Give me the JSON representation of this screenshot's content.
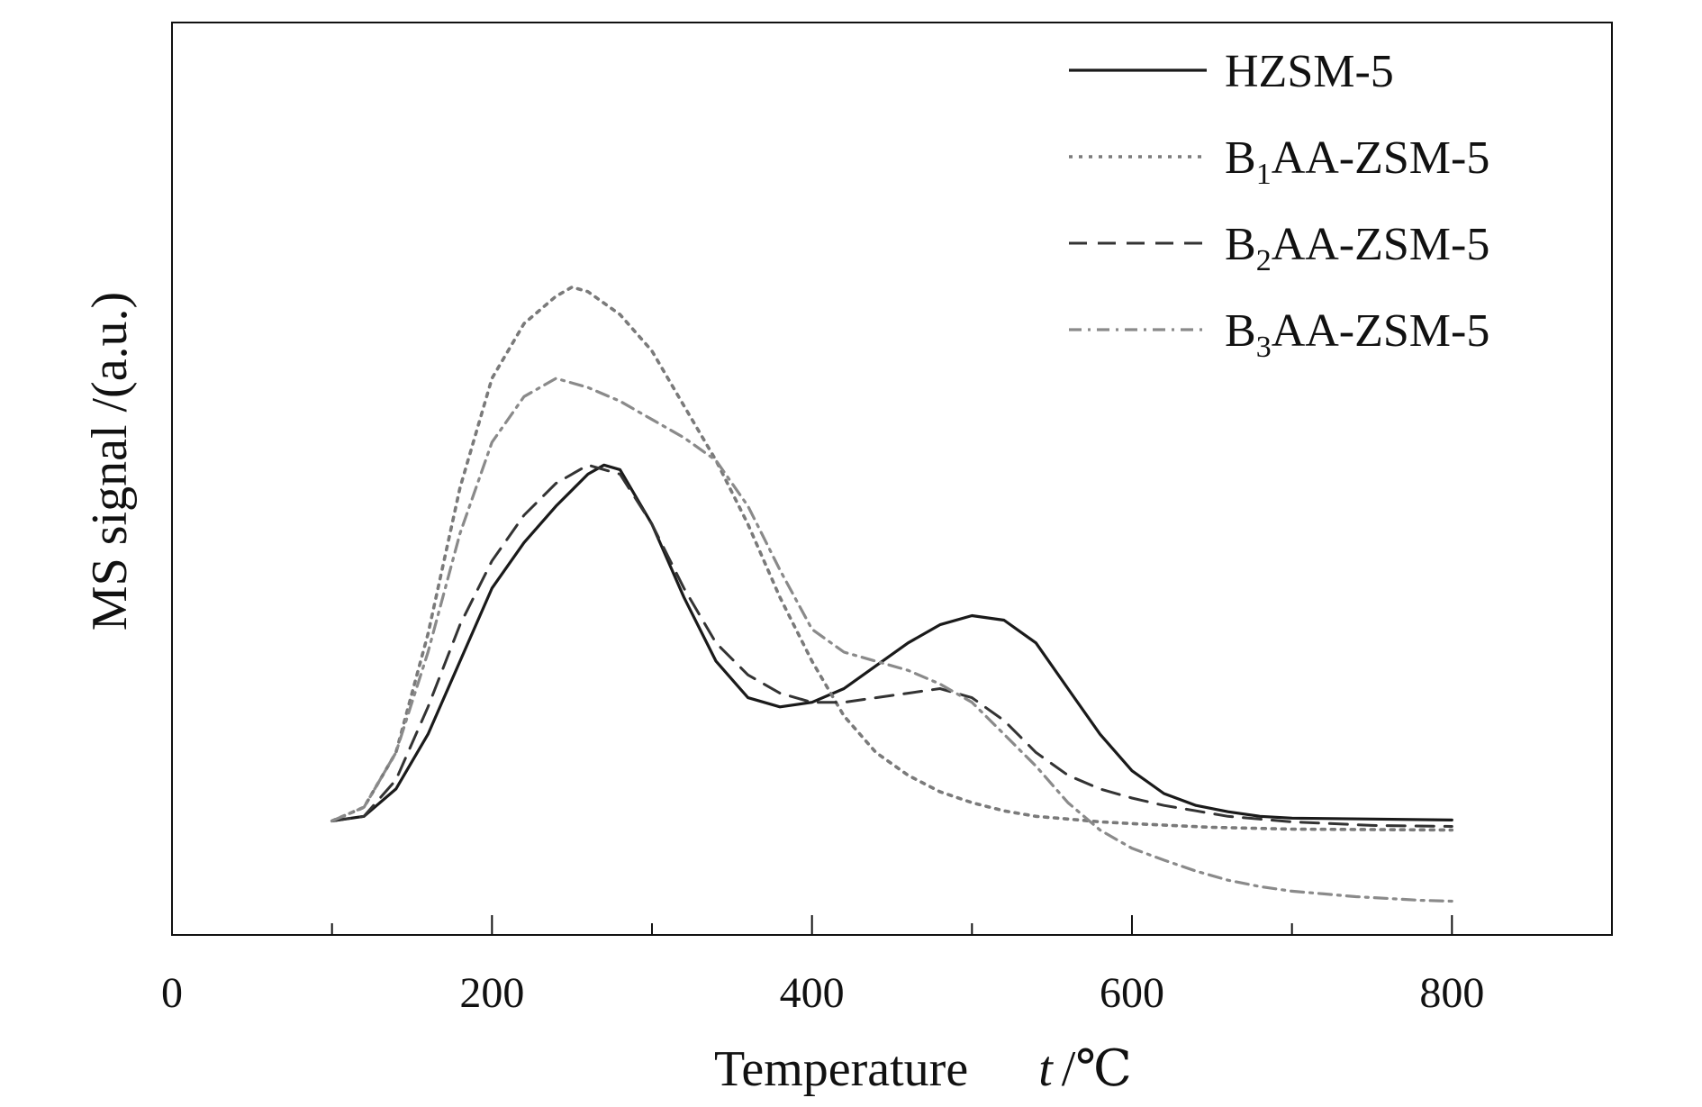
{
  "chart_data": {
    "type": "line",
    "title": "",
    "xlabel": "Temperature",
    "xlabel_symbol": "t",
    "xlabel_unit": "/℃",
    "ylabel": "MS signal  /(a.u.)",
    "xlim": [
      0,
      900
    ],
    "ylim": [
      0,
      100
    ],
    "x_ticks": [
      0,
      200,
      400,
      600,
      800
    ],
    "x_minor_ticks": [
      100,
      300,
      500,
      700
    ],
    "y_ticks_shown": false,
    "grid": false,
    "legend_position": "top-right",
    "series": [
      {
        "name_main": "HZSM-5",
        "name_sub": "",
        "name_suffix": "",
        "style": "solid",
        "color": "#1a1a1a",
        "points": [
          [
            100,
            12.5
          ],
          [
            120,
            13
          ],
          [
            140,
            16
          ],
          [
            160,
            22
          ],
          [
            180,
            30
          ],
          [
            200,
            38
          ],
          [
            220,
            43
          ],
          [
            240,
            47
          ],
          [
            260,
            50.5
          ],
          [
            270,
            51.5
          ],
          [
            280,
            51
          ],
          [
            300,
            45
          ],
          [
            320,
            37
          ],
          [
            340,
            30
          ],
          [
            360,
            26
          ],
          [
            380,
            25
          ],
          [
            400,
            25.5
          ],
          [
            420,
            27
          ],
          [
            440,
            29.5
          ],
          [
            460,
            32
          ],
          [
            480,
            34
          ],
          [
            500,
            35
          ],
          [
            520,
            34.5
          ],
          [
            540,
            32
          ],
          [
            560,
            27
          ],
          [
            580,
            22
          ],
          [
            600,
            18
          ],
          [
            620,
            15.5
          ],
          [
            640,
            14.2
          ],
          [
            660,
            13.5
          ],
          [
            680,
            13
          ],
          [
            700,
            12.8
          ],
          [
            750,
            12.7
          ],
          [
            800,
            12.6
          ]
        ]
      },
      {
        "name_main": "B",
        "name_sub": "1",
        "name_suffix": "AA-ZSM-5",
        "style": "dot",
        "color": "#7a7a7a",
        "points": [
          [
            100,
            12.5
          ],
          [
            120,
            14
          ],
          [
            140,
            20
          ],
          [
            160,
            33
          ],
          [
            180,
            49
          ],
          [
            200,
            61
          ],
          [
            220,
            67
          ],
          [
            240,
            70
          ],
          [
            250,
            71
          ],
          [
            260,
            70.5
          ],
          [
            280,
            68
          ],
          [
            300,
            64
          ],
          [
            320,
            58
          ],
          [
            340,
            52
          ],
          [
            360,
            45
          ],
          [
            380,
            37
          ],
          [
            400,
            30
          ],
          [
            420,
            24
          ],
          [
            440,
            20
          ],
          [
            460,
            17.5
          ],
          [
            480,
            15.7
          ],
          [
            500,
            14.5
          ],
          [
            520,
            13.6
          ],
          [
            540,
            13
          ],
          [
            560,
            12.7
          ],
          [
            580,
            12.4
          ],
          [
            600,
            12.2
          ],
          [
            650,
            11.8
          ],
          [
            700,
            11.6
          ],
          [
            800,
            11.5
          ]
        ]
      },
      {
        "name_main": "B",
        "name_sub": "2",
        "name_suffix": "AA-ZSM-5",
        "style": "dash",
        "color": "#333333",
        "points": [
          [
            100,
            12.5
          ],
          [
            120,
            13
          ],
          [
            140,
            17
          ],
          [
            160,
            25
          ],
          [
            180,
            34
          ],
          [
            200,
            41
          ],
          [
            220,
            46
          ],
          [
            240,
            49.5
          ],
          [
            260,
            51.5
          ],
          [
            280,
            50.5
          ],
          [
            300,
            45
          ],
          [
            320,
            38
          ],
          [
            340,
            32
          ],
          [
            360,
            28.5
          ],
          [
            380,
            26.5
          ],
          [
            400,
            25.5
          ],
          [
            420,
            25.5
          ],
          [
            440,
            26
          ],
          [
            460,
            26.5
          ],
          [
            480,
            27
          ],
          [
            500,
            26
          ],
          [
            520,
            23.5
          ],
          [
            540,
            20
          ],
          [
            560,
            17.5
          ],
          [
            580,
            16
          ],
          [
            600,
            15
          ],
          [
            620,
            14.2
          ],
          [
            640,
            13.6
          ],
          [
            660,
            13
          ],
          [
            700,
            12.4
          ],
          [
            750,
            12
          ],
          [
            800,
            11.9
          ]
        ]
      },
      {
        "name_main": "B",
        "name_sub": "3",
        "name_suffix": "AA-ZSM-5",
        "style": "dashdot",
        "color": "#8a8a8a",
        "points": [
          [
            100,
            12.5
          ],
          [
            120,
            14
          ],
          [
            140,
            20
          ],
          [
            160,
            31
          ],
          [
            180,
            44
          ],
          [
            200,
            54
          ],
          [
            220,
            59
          ],
          [
            240,
            61
          ],
          [
            260,
            60
          ],
          [
            280,
            58.5
          ],
          [
            300,
            56.5
          ],
          [
            320,
            54.5
          ],
          [
            340,
            52
          ],
          [
            360,
            47
          ],
          [
            380,
            40
          ],
          [
            400,
            33.5
          ],
          [
            420,
            31
          ],
          [
            440,
            30
          ],
          [
            460,
            29
          ],
          [
            480,
            27.5
          ],
          [
            500,
            25.5
          ],
          [
            520,
            22
          ],
          [
            540,
            18.5
          ],
          [
            560,
            14.5
          ],
          [
            580,
            11.5
          ],
          [
            600,
            9.5
          ],
          [
            620,
            8.2
          ],
          [
            640,
            7
          ],
          [
            660,
            6
          ],
          [
            680,
            5.3
          ],
          [
            700,
            4.8
          ],
          [
            720,
            4.5
          ],
          [
            740,
            4.2
          ],
          [
            760,
            4
          ],
          [
            780,
            3.8
          ],
          [
            800,
            3.7
          ]
        ]
      }
    ]
  }
}
